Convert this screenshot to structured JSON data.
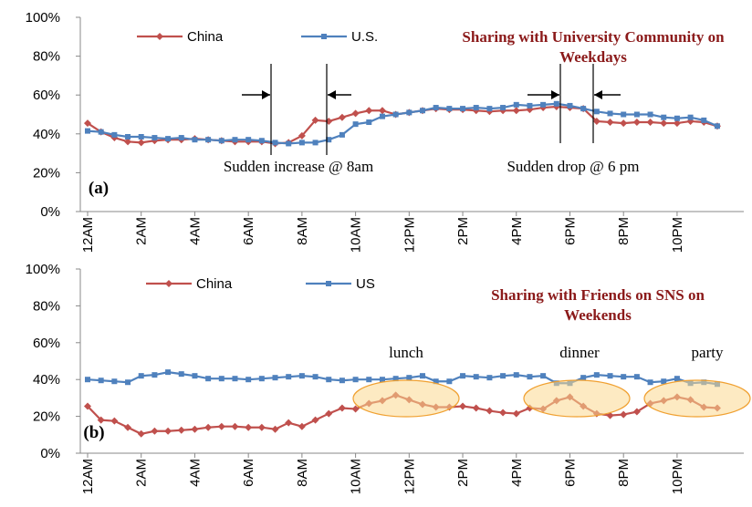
{
  "chart_data": [
    {
      "type": "line",
      "title": "Sharing with University Community on Weekdays",
      "panel_label": "(a)",
      "annotations": [
        "Sudden increase @ 8am",
        "Sudden drop @ 6 pm"
      ],
      "categories": [
        "12AM",
        null,
        null,
        null,
        "2AM",
        null,
        null,
        null,
        "4AM",
        null,
        null,
        null,
        "6AM",
        null,
        null,
        null,
        "8AM",
        null,
        null,
        null,
        "10AM",
        null,
        null,
        null,
        "12PM",
        null,
        null,
        null,
        "2PM",
        null,
        null,
        null,
        "4PM",
        null,
        null,
        null,
        "6PM",
        null,
        null,
        null,
        "8PM",
        null,
        null,
        null,
        "10PM",
        null,
        null,
        null
      ],
      "series": [
        {
          "name": "China",
          "color": "#c0504d",
          "marker": "diamond",
          "values": [
            45.5,
            41,
            38,
            36,
            35.5,
            36.5,
            37,
            37,
            37.5,
            37,
            36.5,
            36,
            36,
            36,
            35,
            35.5,
            39,
            47,
            46.5,
            48.5,
            50.5,
            52,
            52,
            50,
            51,
            52,
            53,
            52.5,
            52.5,
            52,
            51.5,
            52,
            52,
            52.5,
            53.5,
            54,
            53.5,
            53,
            46.5,
            46,
            45.5,
            46,
            46,
            45.5,
            45.5,
            46.5,
            46,
            44
          ]
        },
        {
          "name": "U.S.",
          "color": "#4f81bd",
          "marker": "square",
          "values": [
            41.5,
            41,
            39.5,
            38.5,
            38.5,
            38,
            37.5,
            38,
            37,
            37,
            36.5,
            37,
            37,
            36.5,
            35.5,
            35,
            35.5,
            35.5,
            37,
            39.5,
            45,
            46,
            49,
            50,
            51,
            52,
            53.5,
            53,
            53,
            53.5,
            53,
            53.5,
            55,
            54.5,
            55,
            55.5,
            54.5,
            53,
            51.5,
            50.5,
            50,
            50,
            50,
            48.5,
            48,
            48.5,
            47,
            44
          ]
        }
      ],
      "ylim": [
        0,
        100
      ],
      "yticks": [
        {
          "value": 0,
          "label": "0%"
        },
        {
          "value": 20,
          "label": "20%"
        },
        {
          "value": 40,
          "label": "40%"
        },
        {
          "value": 60,
          "label": "60%"
        },
        {
          "value": 80,
          "label": "80%"
        },
        {
          "value": 100,
          "label": "100%"
        }
      ],
      "grid": false
    },
    {
      "type": "line",
      "title": "Sharing with Friends on SNS on Weekends",
      "panel_label": "(b)",
      "annotations": [
        "lunch",
        "dinner",
        "party"
      ],
      "categories": [
        "12AM",
        null,
        null,
        null,
        "2AM",
        null,
        null,
        null,
        "4AM",
        null,
        null,
        null,
        "6AM",
        null,
        null,
        null,
        "8AM",
        null,
        null,
        null,
        "10AM",
        null,
        null,
        null,
        "12PM",
        null,
        null,
        null,
        "2PM",
        null,
        null,
        null,
        "4PM",
        null,
        null,
        null,
        "6PM",
        null,
        null,
        null,
        "8PM",
        null,
        null,
        null,
        "10PM",
        null,
        null,
        null
      ],
      "series": [
        {
          "name": "China",
          "color": "#c0504d",
          "marker": "diamond",
          "values": [
            25.5,
            18,
            17.5,
            14,
            10.5,
            12,
            12,
            12.5,
            13,
            14,
            14.5,
            14.5,
            14,
            14,
            13,
            16.5,
            14.5,
            18,
            21.5,
            24.5,
            24,
            27,
            28.5,
            31.5,
            29,
            26.5,
            25,
            25,
            25.5,
            24.5,
            23,
            22,
            21.5,
            24.5,
            24,
            28.5,
            30.5,
            25.5,
            21.5,
            20.5,
            21,
            22.5,
            27,
            28.5,
            30.5,
            29,
            25,
            24.5
          ]
        },
        {
          "name": "US",
          "color": "#4f81bd",
          "marker": "square",
          "values": [
            40,
            39.5,
            39,
            38.5,
            42,
            42.5,
            44,
            43,
            42,
            40.5,
            40.5,
            40.5,
            40,
            40.5,
            41,
            41.5,
            42,
            41.5,
            40,
            39.5,
            40,
            40,
            40,
            40.5,
            41,
            42,
            39,
            39,
            42,
            41.5,
            41,
            42,
            42.5,
            41.5,
            42,
            38,
            38,
            41,
            42.5,
            42,
            41.5,
            41.5,
            38.5,
            39,
            40.5,
            38,
            38.5,
            37.5
          ]
        }
      ],
      "ylim": [
        0,
        100
      ],
      "yticks": [
        {
          "value": 0,
          "label": "0%"
        },
        {
          "value": 20,
          "label": "20%"
        },
        {
          "value": 40,
          "label": "40%"
        },
        {
          "value": 60,
          "label": "60%"
        },
        {
          "value": 80,
          "label": "80%"
        },
        {
          "value": 100,
          "label": "100%"
        }
      ],
      "grid": false
    }
  ]
}
